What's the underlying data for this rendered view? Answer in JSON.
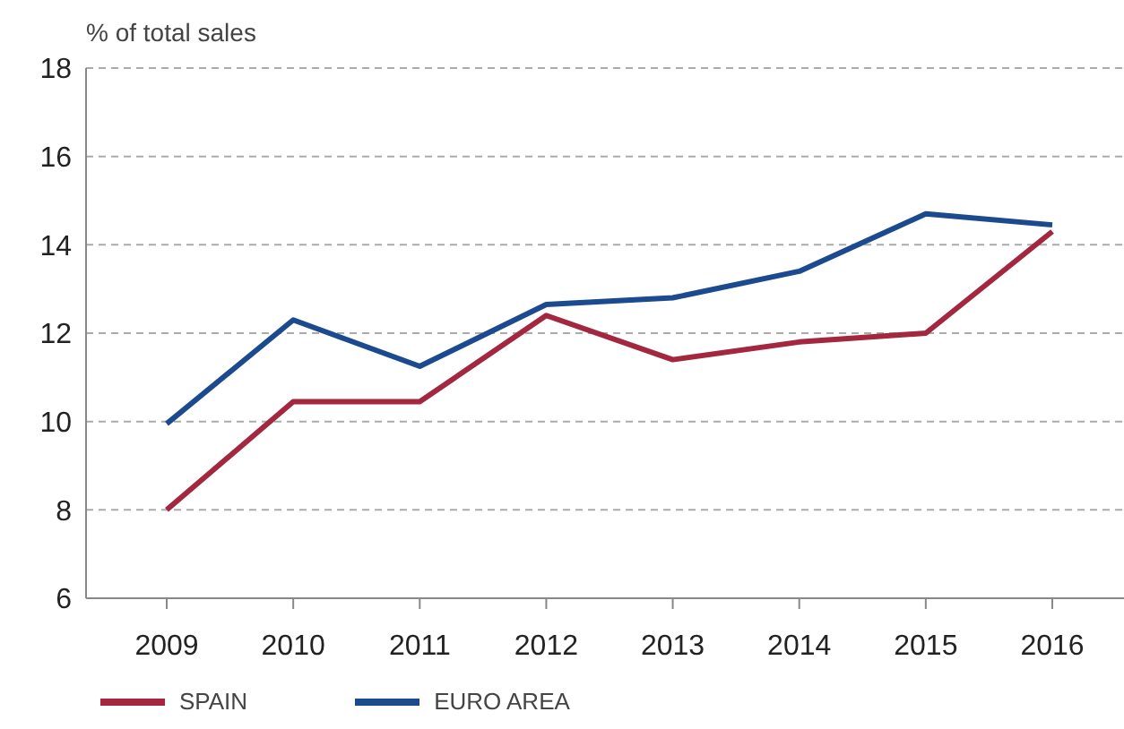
{
  "chart_data": {
    "type": "line",
    "ylabel": "% of total sales",
    "categories": [
      "2009",
      "2010",
      "2011",
      "2012",
      "2013",
      "2014",
      "2015",
      "2016"
    ],
    "series": [
      {
        "name": "SPAIN",
        "color": "#a3283f",
        "values": [
          8.0,
          10.45,
          10.45,
          12.4,
          11.4,
          11.8,
          12.0,
          14.3
        ]
      },
      {
        "name": "EURO AREA",
        "color": "#1b4a8f",
        "values": [
          9.95,
          12.3,
          11.25,
          12.65,
          12.8,
          13.4,
          14.7,
          14.45
        ]
      }
    ],
    "ylim": [
      6,
      18
    ],
    "yticks": [
      6,
      8,
      10,
      12,
      14,
      16,
      18
    ],
    "grid": "y",
    "legend": "bottom left",
    "marker": "none",
    "line_style": "solid"
  }
}
